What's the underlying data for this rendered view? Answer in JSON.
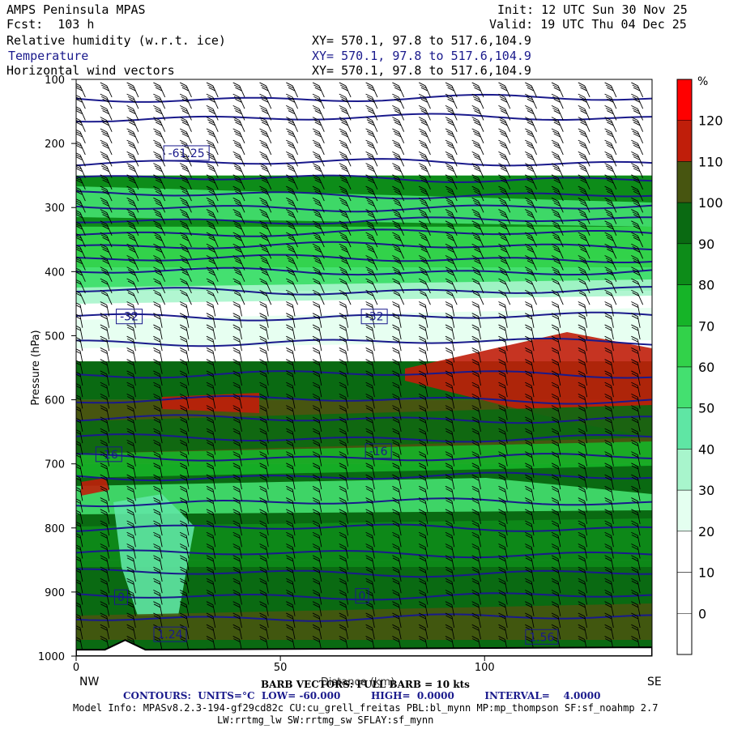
{
  "header": {
    "model": "AMPS Peninsula MPAS",
    "fcst": "Fcst:  103 h",
    "init": "Init: 12 UTC Sun 30 Nov 25",
    "valid": "Valid: 19 UTC Thu 04 Dec 25",
    "fields": [
      {
        "name": "Relative humidity (w.r.t. ice)",
        "xy": "XY= 570.1, 97.8 to 517.6,104.9"
      },
      {
        "name": "Temperature",
        "xy": "XY= 570.1, 97.8 to 517.6,104.9"
      },
      {
        "name": "Horizontal wind vectors",
        "xy": "XY= 570.1, 97.8 to 517.6,104.9"
      }
    ]
  },
  "colorbar": {
    "unit": "%",
    "levels": [
      0,
      10,
      20,
      30,
      40,
      50,
      60,
      70,
      80,
      90,
      100,
      110,
      120
    ],
    "colors": [
      "#ffffff",
      "#ffffff",
      "#ffffff",
      "#e4fff0",
      "#a8f5cc",
      "#5fe6a4",
      "#44e070",
      "#32d24a",
      "#16b428",
      "#0d8c19",
      "#0a6a12",
      "#475510",
      "#c01e0a",
      "#ff0000"
    ]
  },
  "colors": {
    "temperature_contour": "#1a1a8c",
    "wind_barb": "#000000"
  },
  "chart_data": {
    "type": "heatmap",
    "description_fields": [
      "Relative humidity (w.r.t. ice)",
      "Temperature",
      "Horizontal wind vectors"
    ],
    "ylabel": "Pressure (hPa)",
    "xlabel": "Distance (km)",
    "yticks": [
      100,
      200,
      300,
      400,
      500,
      600,
      700,
      800,
      900,
      1000
    ],
    "xticks": [
      0,
      50,
      100
    ],
    "xlim": [
      0,
      141
    ],
    "ylim": [
      1000,
      100
    ],
    "x_end_labels": {
      "left": "NW",
      "right": "SE"
    },
    "rh_layers": [
      {
        "p_top": 100,
        "p_bottom": 250,
        "rh_percent": 15
      },
      {
        "p_top": 250,
        "p_bottom": 330,
        "rh_percent": 85
      },
      {
        "p_top": 330,
        "p_bottom": 380,
        "rh_percent": 65
      },
      {
        "p_top": 380,
        "p_bottom": 430,
        "rh_percent": 55
      },
      {
        "p_top": 430,
        "p_bottom": 540,
        "rh_percent": 15
      },
      {
        "p_top": 540,
        "p_bottom": 600,
        "rh_percent": 95
      },
      {
        "p_top": 600,
        "p_bottom": 700,
        "rh_percent": 100
      },
      {
        "p_top": 700,
        "p_bottom": 850,
        "rh_percent": 90
      },
      {
        "p_top": 850,
        "p_bottom": 1000,
        "rh_percent": 95
      }
    ],
    "temperature_contour_labels": [
      {
        "label": "-61.25",
        "x": 27,
        "p": 215
      },
      {
        "label": "-32",
        "x": 13,
        "p": 470
      },
      {
        "label": "-32",
        "x": 73,
        "p": 470
      },
      {
        "label": "-16",
        "x": 8,
        "p": 685
      },
      {
        "label": "-16",
        "x": 74,
        "p": 680
      },
      {
        "label": "0",
        "x": 11,
        "p": 908
      },
      {
        "label": "0",
        "x": 70,
        "p": 906
      },
      {
        "label": "1.24",
        "x": 23,
        "p": 966
      },
      {
        "label": "1.56",
        "x": 114,
        "p": 970
      }
    ],
    "temperature_contour_pressures": [
      130,
      160,
      230,
      255,
      280,
      300,
      320,
      340,
      360,
      380,
      400,
      430,
      470,
      510,
      560,
      600,
      630,
      660,
      690,
      720,
      760,
      800,
      840,
      870,
      906,
      940
    ],
    "barb_spacing_km": 6.5,
    "terrain_peak": {
      "x": 12,
      "p": 980
    }
  },
  "footer": {
    "barb_text": "BARB VECTORS: FULL BARB = 10 kts",
    "contours": "CONTOURS:  UNITS=°C  LOW= -60.000         HIGH=  0.0000         INTERVAL=    4.0000",
    "model_info": "Model Info: MPASv8.2.3-194-gf29cd82c CU:cu_grell_freitas PBL:bl_mynn MP:mp_thompson SF:sf_noahmp 2.7",
    "model_info2": "LW:rrtmg_lw SW:rrtmg_sw SFLAY:sf_mynn"
  }
}
